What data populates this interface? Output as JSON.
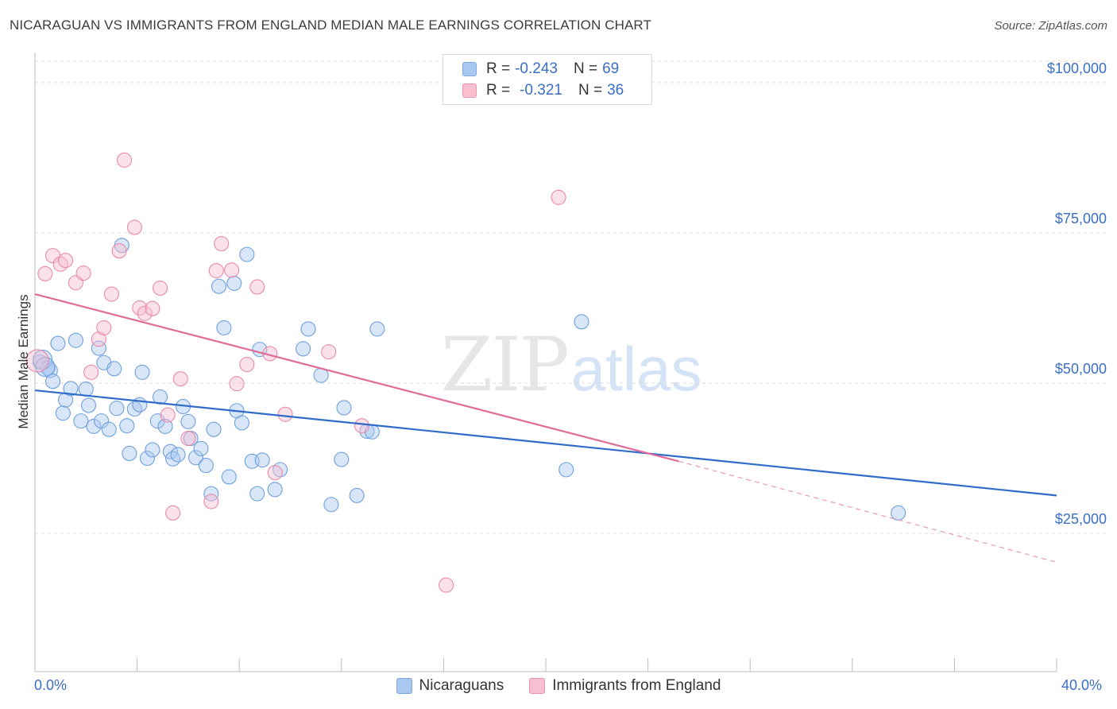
{
  "title": "NICARAGUAN VS IMMIGRANTS FROM ENGLAND MEDIAN MALE EARNINGS CORRELATION CHART",
  "source": "Source: ZipAtlas.com",
  "watermark": {
    "zip": "ZIP",
    "atlas": "atlas"
  },
  "stats": [
    {
      "r_label": "R =",
      "r_value": "-0.243",
      "n_label": "N =",
      "n_value": "69",
      "color": "#a9c8f0",
      "border": "#7ba7e0"
    },
    {
      "r_label": "R =",
      "r_value": "-0.321",
      "n_label": "N =",
      "n_value": "36",
      "color": "#f7bfd0",
      "border": "#ec93ae"
    }
  ],
  "legend": [
    {
      "label": "Nicaraguans",
      "color": "#a9c8f0",
      "border": "#7ba7e0"
    },
    {
      "label": "Immigrants from England",
      "color": "#f7bfd0",
      "border": "#ec93ae"
    }
  ],
  "x_tick_labels": {
    "left": "0.0%",
    "right": "40.0%"
  },
  "chart_data": {
    "type": "scatter",
    "title": "NICARAGUAN VS IMMIGRANTS FROM ENGLAND MEDIAN MALE EARNINGS CORRELATION CHART",
    "xlabel": "",
    "ylabel": "Median Male Earnings",
    "xlim": [
      0,
      40
    ],
    "ylim": [
      2000,
      105000
    ],
    "y_ticks": [
      {
        "value": 25000,
        "label": "$25,000"
      },
      {
        "value": 50000,
        "label": "$50,000"
      },
      {
        "value": 75000,
        "label": "$75,000"
      },
      {
        "value": 100000,
        "label": "$100,000"
      }
    ],
    "x_ticks": [
      0,
      4,
      8,
      12,
      16,
      20,
      24,
      28,
      32,
      36,
      40
    ],
    "grid": "horizontal dashed",
    "legend_position": "bottom",
    "series": [
      {
        "name": "Nicaraguans",
        "color": "#6fa0dc",
        "fill": "rgba(169,200,240,0.45)",
        "trend": {
          "x": [
            0,
            40
          ],
          "y": [
            48800,
            31300
          ],
          "color": "#2f6cc9"
        },
        "points": [
          [
            0.2,
            53500
          ],
          [
            0.5,
            52500
          ],
          [
            0.6,
            52100
          ],
          [
            0.7,
            50300
          ],
          [
            0.9,
            56600
          ],
          [
            1.1,
            45000
          ],
          [
            1.2,
            47200
          ],
          [
            1.4,
            49100
          ],
          [
            1.6,
            57100
          ],
          [
            1.8,
            43700
          ],
          [
            2.0,
            49000
          ],
          [
            2.1,
            46300
          ],
          [
            2.3,
            42800
          ],
          [
            2.5,
            55800
          ],
          [
            2.6,
            43700
          ],
          [
            2.7,
            53400
          ],
          [
            2.9,
            42300
          ],
          [
            3.1,
            52400
          ],
          [
            3.2,
            45800
          ],
          [
            3.4,
            72900
          ],
          [
            3.6,
            42900
          ],
          [
            3.7,
            38300
          ],
          [
            3.9,
            45700
          ],
          [
            4.1,
            46400
          ],
          [
            4.2,
            51800
          ],
          [
            4.4,
            37500
          ],
          [
            4.6,
            38900
          ],
          [
            4.8,
            43700
          ],
          [
            4.9,
            47700
          ],
          [
            5.1,
            42800
          ],
          [
            5.3,
            38600
          ],
          [
            5.4,
            37400
          ],
          [
            5.6,
            38100
          ],
          [
            5.8,
            46100
          ],
          [
            6.0,
            43600
          ],
          [
            6.1,
            40800
          ],
          [
            6.3,
            37600
          ],
          [
            6.5,
            39100
          ],
          [
            6.7,
            36300
          ],
          [
            6.9,
            31600
          ],
          [
            7.0,
            42300
          ],
          [
            7.2,
            66100
          ],
          [
            7.4,
            59200
          ],
          [
            7.6,
            34400
          ],
          [
            7.8,
            66600
          ],
          [
            7.9,
            45400
          ],
          [
            8.1,
            43400
          ],
          [
            8.3,
            71400
          ],
          [
            8.5,
            37000
          ],
          [
            8.7,
            31600
          ],
          [
            8.8,
            55600
          ],
          [
            8.9,
            37200
          ],
          [
            9.4,
            32300
          ],
          [
            9.6,
            35600
          ],
          [
            10.5,
            55700
          ],
          [
            10.7,
            59000
          ],
          [
            11.2,
            51300
          ],
          [
            11.6,
            29800
          ],
          [
            12.0,
            37300
          ],
          [
            12.1,
            45900
          ],
          [
            12.6,
            31300
          ],
          [
            13.0,
            42000
          ],
          [
            13.2,
            41900
          ],
          [
            13.4,
            59000
          ],
          [
            20.8,
            35600
          ],
          [
            21.4,
            60200
          ],
          [
            33.8,
            28400
          ],
          [
            0.3,
            53900
          ],
          [
            0.4,
            52700
          ]
        ]
      },
      {
        "name": "Immigrants from England",
        "color": "#e98aaa",
        "fill": "rgba(247,191,208,0.45)",
        "trend": {
          "x": [
            0,
            25.2
          ],
          "y": [
            64800,
            37000
          ],
          "color": "#e06b96"
        },
        "trend_dashed": {
          "x": [
            25.2,
            40
          ],
          "y": [
            37000,
            20200
          ],
          "color": "#e89ab5"
        },
        "points": [
          [
            0.1,
            53700
          ],
          [
            0.4,
            68200
          ],
          [
            0.7,
            71200
          ],
          [
            1.0,
            69800
          ],
          [
            1.2,
            70400
          ],
          [
            1.6,
            66700
          ],
          [
            1.9,
            68300
          ],
          [
            2.2,
            51800
          ],
          [
            2.5,
            57300
          ],
          [
            2.7,
            59200
          ],
          [
            3.0,
            64800
          ],
          [
            3.3,
            72000
          ],
          [
            3.5,
            87100
          ],
          [
            3.9,
            75900
          ],
          [
            4.1,
            62500
          ],
          [
            4.3,
            61600
          ],
          [
            4.6,
            62400
          ],
          [
            4.9,
            65800
          ],
          [
            5.2,
            44700
          ],
          [
            5.4,
            28400
          ],
          [
            5.7,
            50700
          ],
          [
            6.0,
            40800
          ],
          [
            6.9,
            30300
          ],
          [
            7.1,
            68700
          ],
          [
            7.3,
            73200
          ],
          [
            7.7,
            68800
          ],
          [
            7.9,
            49900
          ],
          [
            8.3,
            53100
          ],
          [
            8.7,
            66000
          ],
          [
            9.2,
            54900
          ],
          [
            9.4,
            35100
          ],
          [
            9.8,
            44800
          ],
          [
            11.5,
            55200
          ],
          [
            12.8,
            42900
          ],
          [
            16.1,
            16400
          ],
          [
            20.5,
            80900
          ]
        ]
      }
    ]
  }
}
